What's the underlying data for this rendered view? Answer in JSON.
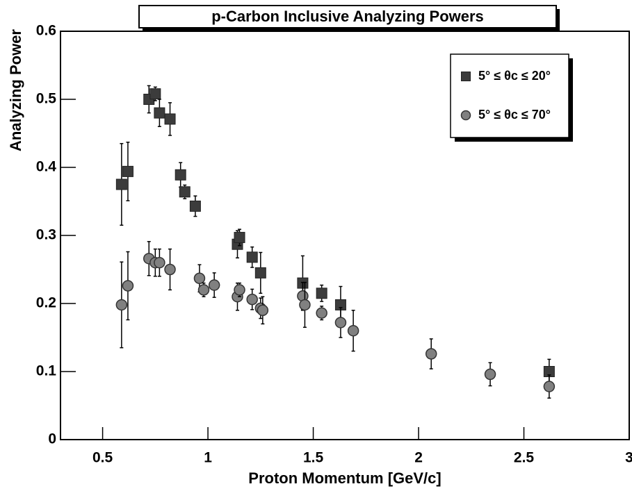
{
  "chart_data": {
    "type": "scatter",
    "title": "p-Carbon Inclusive Analyzing Powers",
    "x_label": "Proton Momentum [GeV/c]",
    "y_label": "Analyzing Power",
    "xlim": [
      0.3,
      3.0
    ],
    "ylim": [
      0,
      0.6
    ],
    "xticks": [
      0.5,
      1,
      1.5,
      2,
      2.5,
      3
    ],
    "yticks": [
      0,
      0.1,
      0.2,
      0.3,
      0.4,
      0.5,
      0.6
    ],
    "legend": "top-right",
    "series": [
      {
        "name": "5° ≤ θc ≤ 20°",
        "color": "#3c3c3c",
        "marker": "square",
        "x": [
          0.59,
          0.62,
          0.72,
          0.75,
          0.77,
          0.82,
          0.87,
          0.89,
          0.94,
          1.14,
          1.15,
          1.21,
          1.25,
          1.45,
          1.54,
          1.63,
          2.62
        ],
        "values": [
          0.375,
          0.394,
          0.5,
          0.508,
          0.48,
          0.471,
          0.389,
          0.364,
          0.343,
          0.287,
          0.297,
          0.268,
          0.245,
          0.23,
          0.215,
          0.198,
          0.1
        ],
        "errors": [
          0.06,
          0.043,
          0.02,
          0.01,
          0.02,
          0.024,
          0.018,
          0.01,
          0.015,
          0.02,
          0.012,
          0.015,
          0.03,
          0.04,
          0.012,
          0.027,
          0.018
        ]
      },
      {
        "name": "5° ≤ θc ≤ 70°",
        "color": "#808080",
        "marker": "circle",
        "x": [
          0.59,
          0.62,
          0.72,
          0.75,
          0.77,
          0.82,
          0.96,
          0.98,
          1.03,
          1.14,
          1.15,
          1.21,
          1.25,
          1.26,
          1.45,
          1.46,
          1.54,
          1.63,
          1.69,
          2.06,
          2.34,
          2.62
        ],
        "values": [
          0.198,
          0.226,
          0.266,
          0.26,
          0.26,
          0.25,
          0.237,
          0.22,
          0.227,
          0.21,
          0.22,
          0.206,
          0.193,
          0.19,
          0.211,
          0.198,
          0.186,
          0.172,
          0.16,
          0.126,
          0.096,
          0.078
        ],
        "errors": [
          0.063,
          0.05,
          0.025,
          0.02,
          0.02,
          0.03,
          0.02,
          0.01,
          0.018,
          0.02,
          0.01,
          0.015,
          0.015,
          0.02,
          0.02,
          0.033,
          0.01,
          0.022,
          0.03,
          0.022,
          0.017,
          0.017
        ]
      }
    ]
  }
}
